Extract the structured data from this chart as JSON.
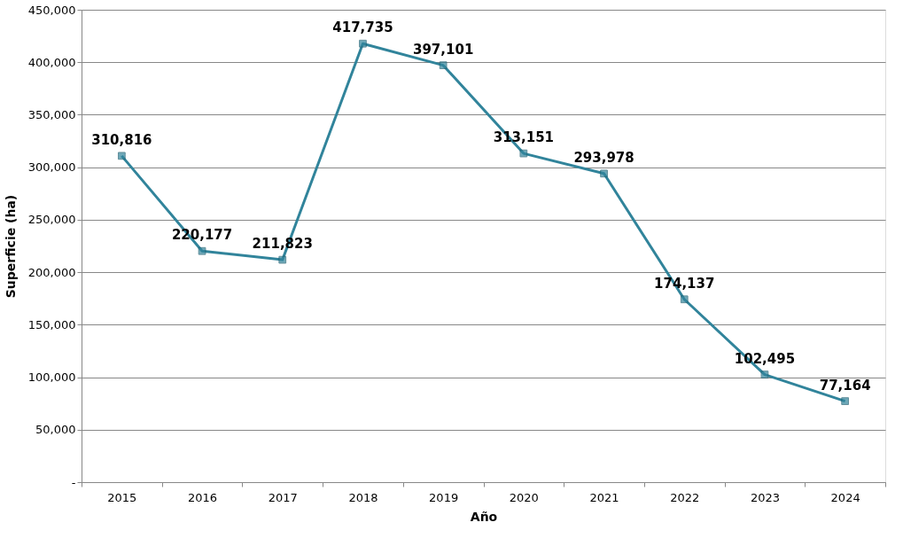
{
  "chart_data": {
    "type": "line",
    "xlabel": "Año",
    "ylabel": "Superficie (ha)",
    "categories": [
      "2015",
      "2016",
      "2017",
      "2018",
      "2019",
      "2020",
      "2021",
      "2022",
      "2023",
      "2024"
    ],
    "series": [
      {
        "color": "#31849b",
        "values": [
          310816,
          220177,
          211823,
          417735,
          397101,
          313151,
          293978,
          174137,
          102495,
          77164
        ],
        "value_labels": [
          "310,816",
          "220,177",
          "211,823",
          "417,735",
          "397,101",
          "313,151",
          "293,978",
          "174,137",
          "102,495",
          "77,164"
        ]
      }
    ],
    "ylim": [
      0,
      450000
    ],
    "yticks": [
      {
        "value": 0,
        "label": "-"
      },
      {
        "value": 50000,
        "label": "50,000"
      },
      {
        "value": 100000,
        "label": "100,000"
      },
      {
        "value": 150000,
        "label": "150,000"
      },
      {
        "value": 200000,
        "label": "200,000"
      },
      {
        "value": 250000,
        "label": "250,000"
      },
      {
        "value": 300000,
        "label": "300,000"
      },
      {
        "value": 350000,
        "label": "350,000"
      },
      {
        "value": 400000,
        "label": "400,000"
      },
      {
        "value": 450000,
        "label": "450,000"
      }
    ],
    "grid": "y",
    "marker": "square",
    "line_style": "solid"
  }
}
